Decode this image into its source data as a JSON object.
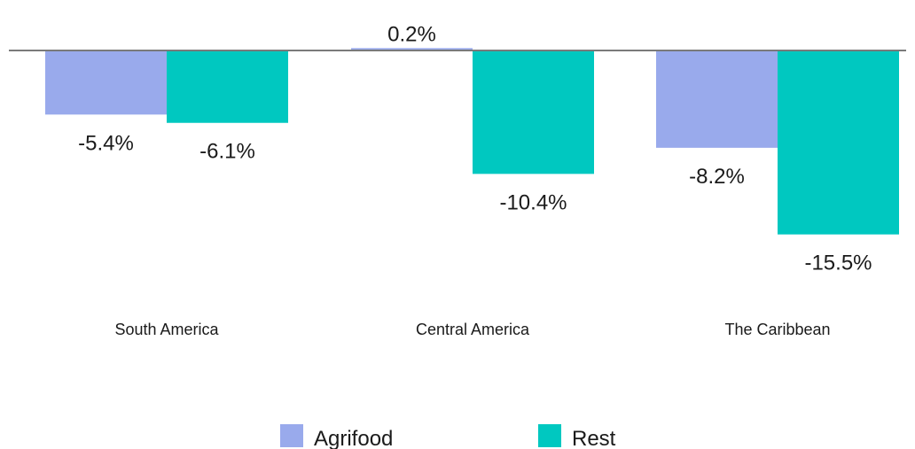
{
  "chart_data": {
    "type": "bar",
    "categories": [
      "South America",
      "Central America",
      "The Caribbean"
    ],
    "series": [
      {
        "name": "Agrifood",
        "color": "#99aaec",
        "values": [
          -5.4,
          0.2,
          -8.2
        ],
        "labels": [
          "-5.4%",
          "0.2%",
          "-8.2%"
        ]
      },
      {
        "name": "Rest",
        "color": "#00c8c0",
        "values": [
          -6.1,
          -10.4,
          -15.5
        ],
        "labels": [
          "-6.1%",
          "-10.4%",
          "-15.5%"
        ]
      }
    ],
    "unit": "%",
    "ylim": [
      -18,
      2
    ],
    "legend": "bottom",
    "grid": false,
    "axis_color": "#7a7a7a"
  }
}
